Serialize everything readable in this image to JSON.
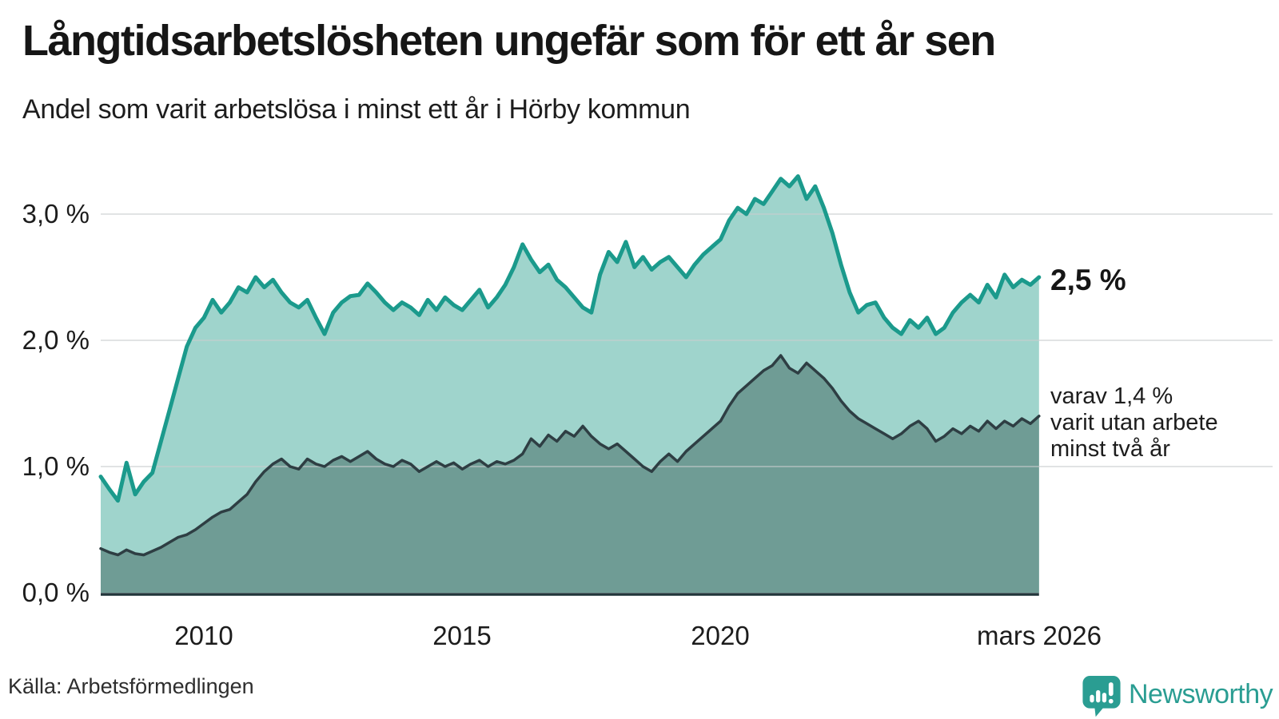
{
  "header": {
    "title": "Långtidsarbetslösheten ungefär som för ett år sen",
    "subtitle": "Andel som varit arbetslösa i minst ett år i Hörby kommun"
  },
  "chart": {
    "y_ticks": [
      "3,0 %",
      "2,0 %",
      "1,0 %",
      "0,0 %"
    ],
    "x_ticks": [
      "2010",
      "2015",
      "2020",
      "mars 2026"
    ],
    "annotation_total": "2,5 %",
    "annotation_sub_lines": [
      "varav 1,4 %",
      "varit utan arbete",
      "minst två år"
    ]
  },
  "chart_data": {
    "type": "area",
    "title": "Andel som varit arbetslösa i minst ett år i Hörby kommun",
    "x_start": 2008.0,
    "x_step_years": 0.1667,
    "x_end_label": "mars 2026",
    "x_tick_years": [
      2010,
      2015,
      2020,
      2026.17
    ],
    "ylim": [
      0,
      3.5
    ],
    "y_gridlines_pct": [
      1.0,
      2.0,
      3.0
    ],
    "y_tick_format": "percent_sv",
    "legend_position": "annotations-right",
    "grid": true,
    "series": [
      {
        "name": "Andel arbetslösa minst ett år",
        "latest_label": "2,5 %",
        "latest_value": 2.5,
        "line_color": "#1b9a8c",
        "fill_color": "#9fd4cc",
        "values": [
          0.92,
          0.82,
          0.73,
          1.03,
          0.78,
          0.88,
          0.95,
          1.2,
          1.45,
          1.7,
          1.95,
          2.1,
          2.18,
          2.32,
          2.22,
          2.3,
          2.42,
          2.38,
          2.5,
          2.42,
          2.48,
          2.38,
          2.3,
          2.26,
          2.32,
          2.18,
          2.05,
          2.22,
          2.3,
          2.35,
          2.36,
          2.45,
          2.38,
          2.3,
          2.24,
          2.3,
          2.26,
          2.2,
          2.32,
          2.24,
          2.34,
          2.28,
          2.24,
          2.32,
          2.4,
          2.26,
          2.34,
          2.44,
          2.58,
          2.76,
          2.64,
          2.54,
          2.6,
          2.48,
          2.42,
          2.34,
          2.26,
          2.22,
          2.52,
          2.7,
          2.62,
          2.78,
          2.58,
          2.66,
          2.56,
          2.62,
          2.66,
          2.58,
          2.5,
          2.6,
          2.68,
          2.74,
          2.8,
          2.95,
          3.05,
          3.0,
          3.12,
          3.08,
          3.18,
          3.28,
          3.22,
          3.3,
          3.12,
          3.22,
          3.05,
          2.85,
          2.6,
          2.38,
          2.22,
          2.28,
          2.3,
          2.18,
          2.1,
          2.05,
          2.16,
          2.1,
          2.18,
          2.05,
          2.1,
          2.22,
          2.3,
          2.36,
          2.3,
          2.44,
          2.34,
          2.52,
          2.42,
          2.48,
          2.44,
          2.5
        ]
      },
      {
        "name": "varav utan arbete minst två år",
        "latest_label": "1,4 %",
        "latest_value": 1.4,
        "line_color": "#2e3e43",
        "fill_color": "#6f9c95",
        "values": [
          0.35,
          0.32,
          0.3,
          0.34,
          0.31,
          0.3,
          0.33,
          0.36,
          0.4,
          0.44,
          0.46,
          0.5,
          0.55,
          0.6,
          0.64,
          0.66,
          0.72,
          0.78,
          0.88,
          0.96,
          1.02,
          1.06,
          1.0,
          0.98,
          1.06,
          1.02,
          1.0,
          1.05,
          1.08,
          1.04,
          1.08,
          1.12,
          1.06,
          1.02,
          1.0,
          1.05,
          1.02,
          0.96,
          1.0,
          1.04,
          1.0,
          1.03,
          0.98,
          1.02,
          1.05,
          1.0,
          1.04,
          1.02,
          1.05,
          1.1,
          1.22,
          1.16,
          1.25,
          1.2,
          1.28,
          1.24,
          1.32,
          1.24,
          1.18,
          1.14,
          1.18,
          1.12,
          1.06,
          1.0,
          0.96,
          1.04,
          1.1,
          1.04,
          1.12,
          1.18,
          1.24,
          1.3,
          1.36,
          1.48,
          1.58,
          1.64,
          1.7,
          1.76,
          1.8,
          1.88,
          1.78,
          1.74,
          1.82,
          1.76,
          1.7,
          1.62,
          1.52,
          1.44,
          1.38,
          1.34,
          1.3,
          1.26,
          1.22,
          1.26,
          1.32,
          1.36,
          1.3,
          1.2,
          1.24,
          1.3,
          1.26,
          1.32,
          1.28,
          1.36,
          1.3,
          1.36,
          1.32,
          1.38,
          1.34,
          1.4
        ]
      }
    ],
    "colors": {
      "gridline": "#c9ccce",
      "baseline": "#21353a",
      "accent": "#1b9a8c",
      "brand": "#2a9d92"
    }
  },
  "footer": {
    "source": "Källa: Arbetsförmedlingen",
    "brand": "Newsworthy"
  }
}
